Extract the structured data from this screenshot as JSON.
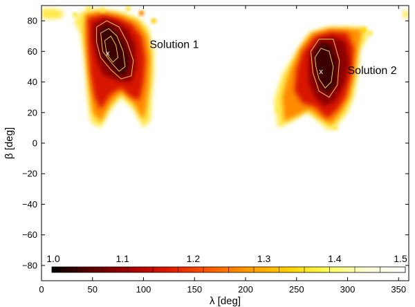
{
  "chart_data": {
    "type": "heatmap",
    "title": "",
    "xlabel": "λ [deg]",
    "ylabel": "β [deg]",
    "xlim": [
      0,
      360
    ],
    "ylim": [
      -90,
      90
    ],
    "xticks": [
      0,
      50,
      100,
      150,
      200,
      250,
      300,
      350
    ],
    "yticks": [
      -80,
      -60,
      -40,
      -20,
      0,
      20,
      40,
      60,
      80
    ],
    "grid": false,
    "colormap": "hot",
    "colorbar": {
      "orientation": "horizontal",
      "placement": "bottom inside axes",
      "range": [
        1.0,
        1.5
      ],
      "ticks": [
        "1.0",
        "1.1",
        "1.2",
        "1.3",
        "1.4",
        "1.5"
      ],
      "colors": [
        "#000000",
        "#5c0000",
        "#a50000",
        "#e01a00",
        "#ff5a00",
        "#ff9a00",
        "#ffd000",
        "#ffff55",
        "#ffffd8",
        "#ffffff"
      ]
    },
    "regions": [
      {
        "name": "Solution 1",
        "lambda_range": [
          42,
          110
        ],
        "beta_range": [
          10,
          86
        ]
      },
      {
        "name": "Solution 2",
        "lambda_range": [
          228,
          310
        ],
        "beta_range": [
          8,
          78
        ]
      }
    ],
    "annotations": [
      {
        "text": "Solution 1",
        "lambda": 106,
        "beta": 65
      },
      {
        "text": "Solution 2",
        "lambda": 300,
        "beta": 48
      }
    ],
    "best_fit_markers": [
      {
        "symbol": "x",
        "lambda": 65,
        "beta": 59
      },
      {
        "symbol": "x",
        "lambda": 274,
        "beta": 47
      }
    ]
  }
}
